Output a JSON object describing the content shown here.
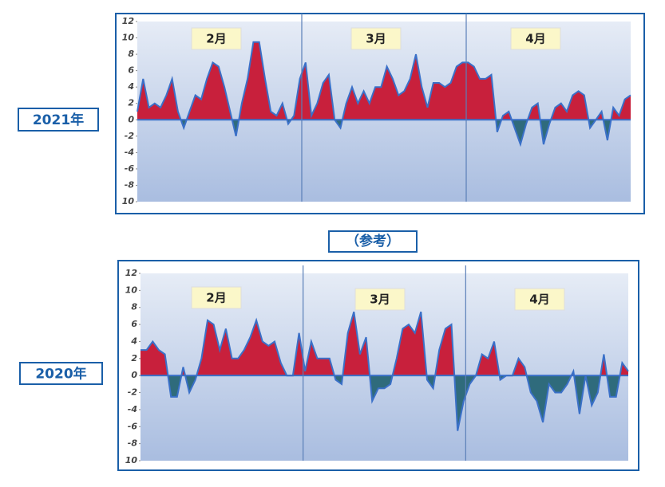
{
  "note": "（参考）",
  "chart_data": [
    {
      "type": "area",
      "title": "2021年",
      "months": [
        "2月",
        "3月",
        "4月"
      ],
      "values": [
        1,
        5,
        1.5,
        2,
        1.5,
        3,
        5,
        1,
        -1,
        1,
        3,
        2.5,
        5,
        7,
        6.5,
        4,
        1,
        -2,
        2,
        5,
        9.5,
        9.5,
        5,
        1,
        0.5,
        2,
        -0.5,
        0.5,
        5,
        7,
        0.5,
        2,
        4.5,
        5.5,
        0,
        -1,
        2,
        4,
        2,
        3.5,
        2,
        4,
        4,
        6.5,
        5,
        3,
        3.5,
        5,
        8,
        4,
        1.5,
        4.5,
        4.5,
        4,
        4.5,
        6.5,
        7,
        7,
        6.5,
        5,
        5,
        5.5,
        -1.5,
        0.5,
        1,
        -1,
        -3,
        -0.5,
        1.5,
        2,
        -3,
        -0.5,
        1.5,
        2,
        1,
        3,
        3.5,
        3,
        -1,
        0,
        1,
        -2.5,
        1.5,
        0.5,
        2.5,
        3
      ],
      "ylim": [
        -10,
        12
      ],
      "yticks": [
        12,
        10,
        8,
        6,
        4,
        2,
        0,
        -2,
        -4,
        -6,
        -8,
        {
          "value": -10,
          "label": "10"
        }
      ],
      "positive_color": "#c8203c",
      "negative_color": "#2f6b7c",
      "line_color": "#3a70c8"
    },
    {
      "type": "area",
      "title": "2020年",
      "months": [
        "2月",
        "3月",
        "4月"
      ],
      "values": [
        3,
        3,
        4,
        3,
        2.5,
        -2.5,
        -2.5,
        1,
        -2,
        -0.5,
        2,
        6.5,
        6,
        3,
        5.5,
        2,
        2,
        3,
        4.5,
        6.5,
        4,
        3.5,
        4,
        1.5,
        0,
        0,
        5,
        0.5,
        4,
        2,
        2,
        2,
        -0.5,
        -1,
        5,
        7.5,
        2.5,
        4.5,
        -3,
        -1.5,
        -1.5,
        -1,
        2,
        5.5,
        6,
        5,
        7.5,
        -0.5,
        -1.5,
        3,
        5.5,
        6,
        -6.5,
        -3,
        -1,
        0,
        2.5,
        2,
        4,
        -0.5,
        0,
        0,
        2,
        1,
        -2,
        -3,
        -5.5,
        -1,
        -2,
        -2,
        -1,
        0.5,
        -4.5,
        0,
        -3.5,
        -2,
        2.5,
        -2.5,
        -2.5,
        1.5,
        0.5
      ],
      "ylim": [
        -10,
        12
      ],
      "yticks": [
        12,
        10,
        8,
        6,
        4,
        2,
        0,
        -2,
        -4,
        -6,
        -8,
        {
          "value": -10,
          "label": "10"
        }
      ],
      "positive_color": "#c8203c",
      "negative_color": "#2f6b7c",
      "line_color": "#3a70c8"
    }
  ]
}
